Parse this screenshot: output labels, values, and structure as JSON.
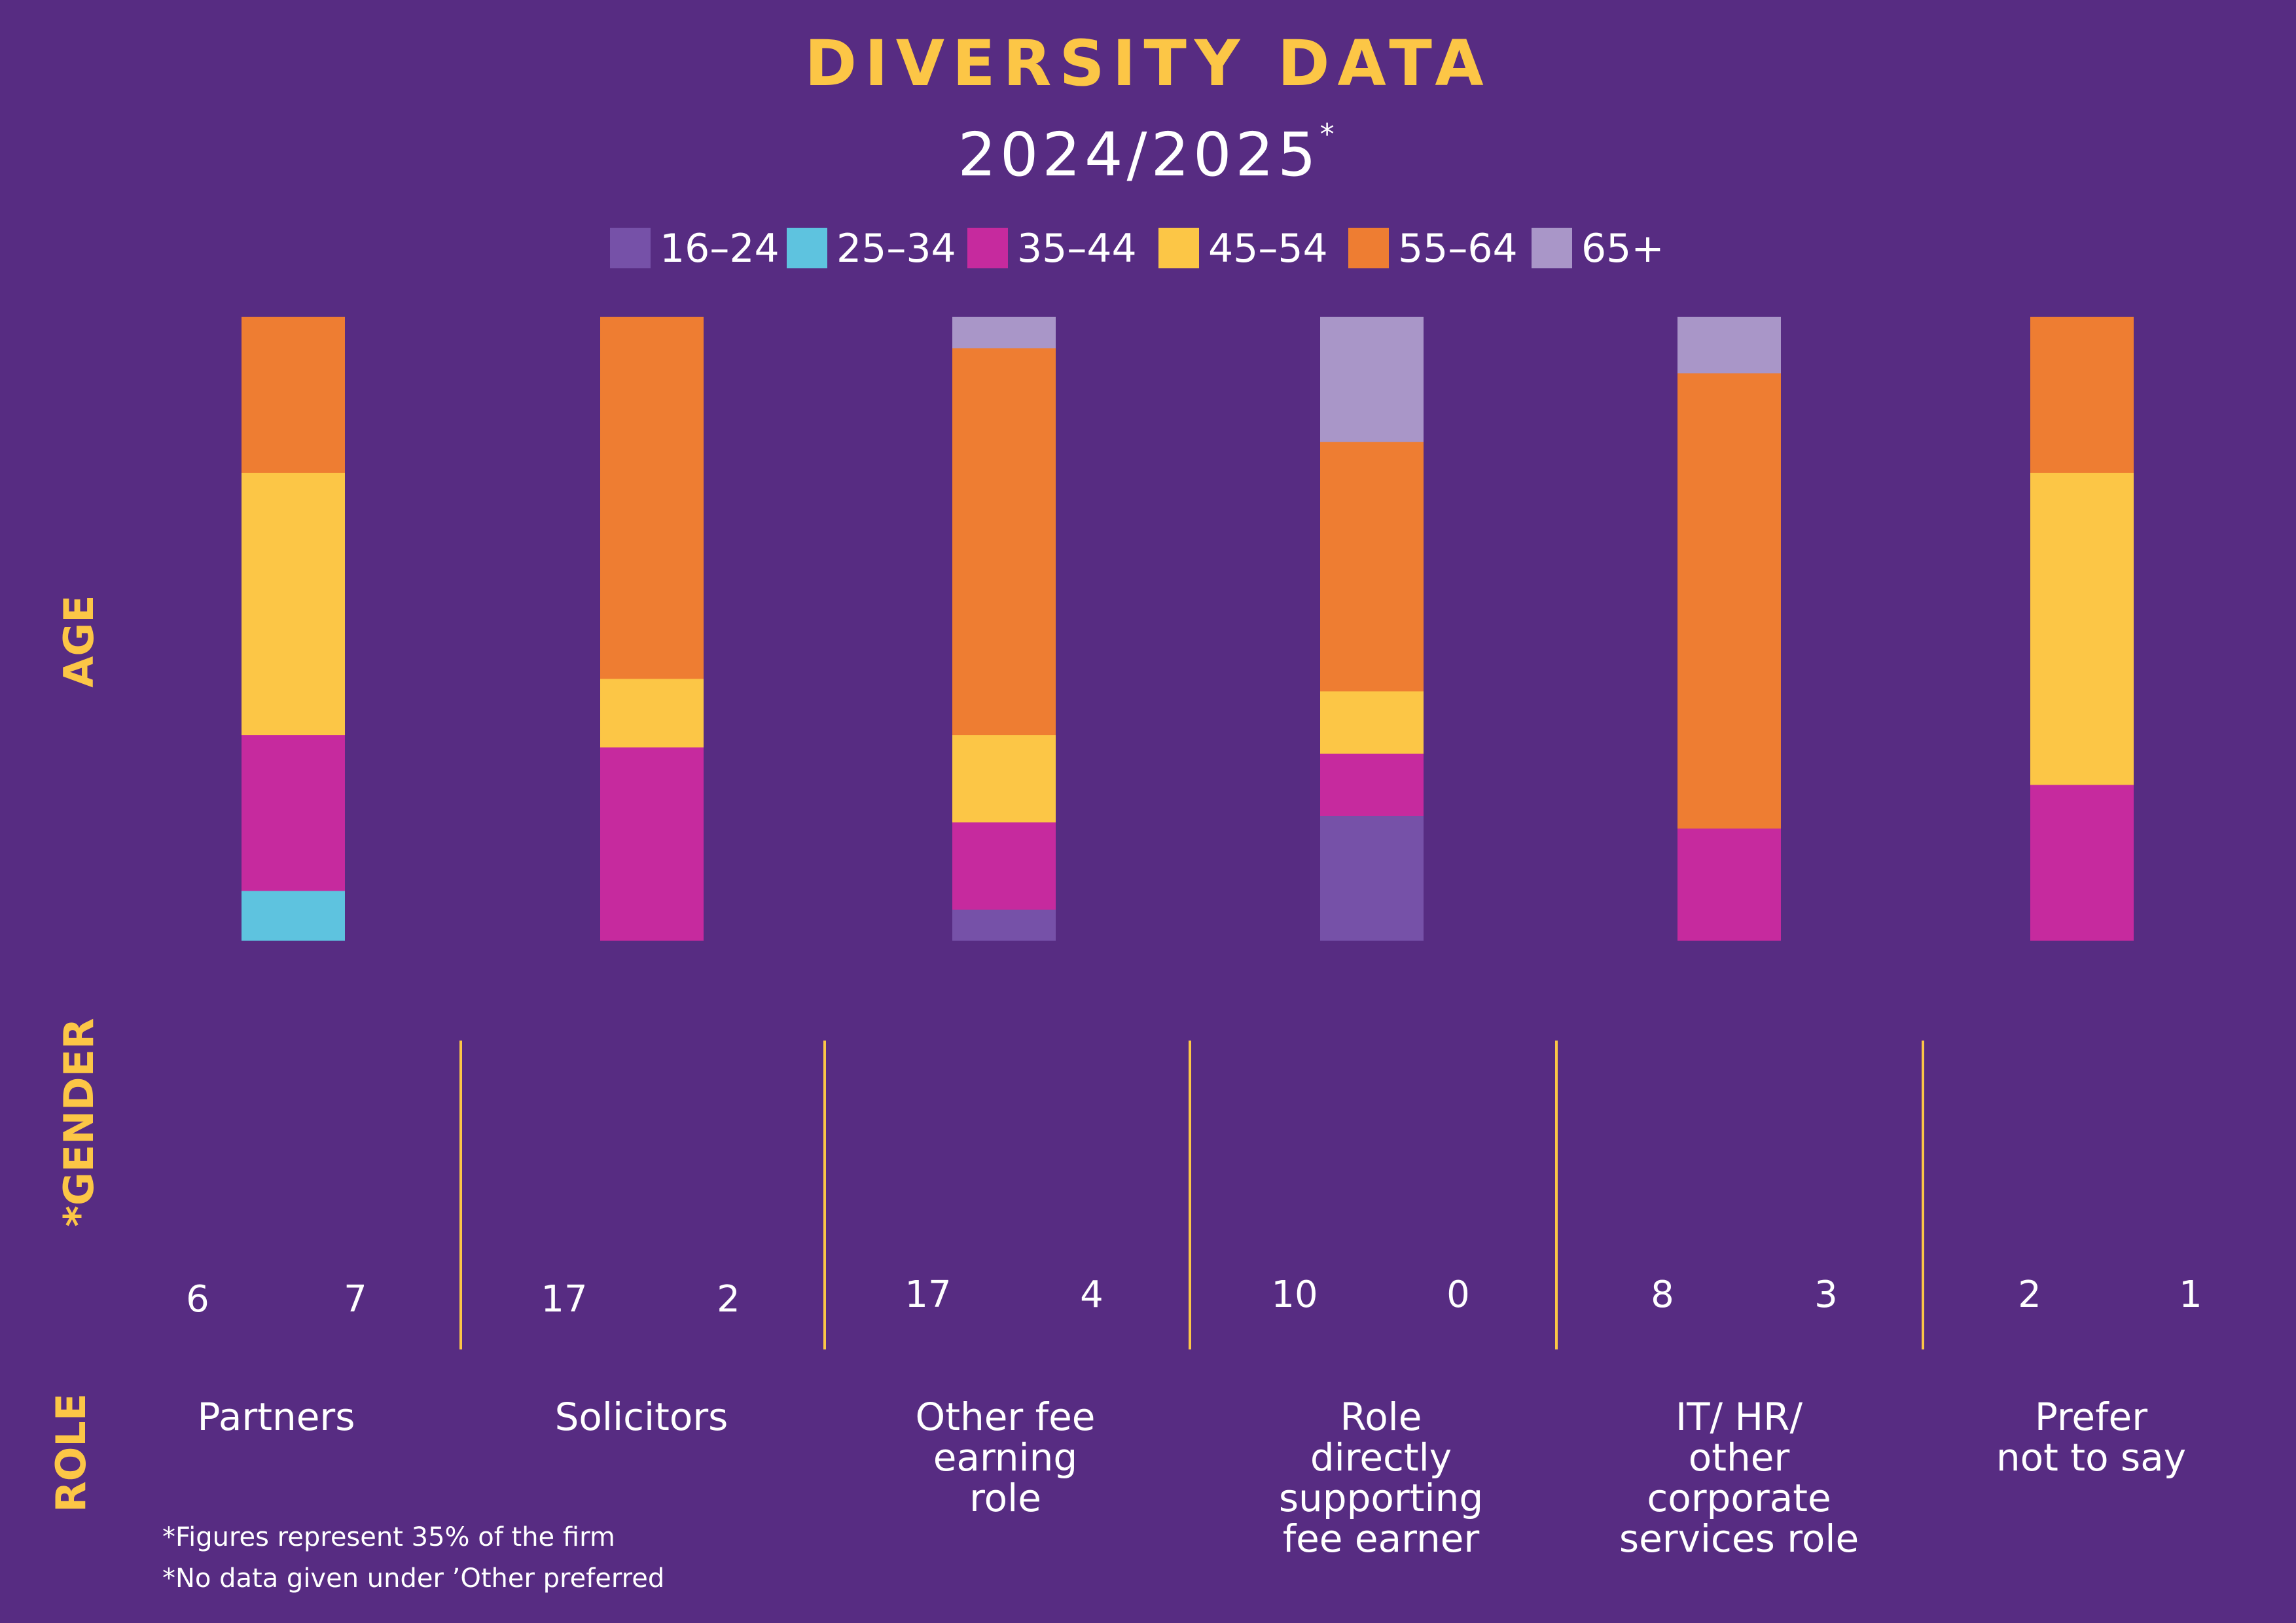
{
  "header": {
    "title": "DIVERSITY DATA",
    "subtitle": "2024/2025",
    "subtitle_mark": "*"
  },
  "section_labels": {
    "age": "AGE",
    "gender": "*GENDER",
    "role": "ROLE"
  },
  "footnotes": [
    "*Figures represent 35% of the firm",
    "*No data given under ’Other preferred"
  ],
  "colors": {
    "background": "#572c82",
    "accent": "#fcc646",
    "female": "#d6000f",
    "male": "#0a9a52",
    "figure_base": "#ffffff",
    "divider": "#fcc646"
  },
  "chart_data": {
    "type": "bar",
    "stacked": true,
    "orientation": "vertical",
    "value_unit": "percent",
    "categories": [
      "Partners",
      "Solicitors",
      "Other fee earning role",
      "Role directly supporting fee earner",
      "IT/ HR/ other corporate services role",
      "Prefer not to say"
    ],
    "age_series": [
      {
        "name": "16–24",
        "color": "#7651a8",
        "values": [
          0,
          0,
          5,
          20,
          0,
          0
        ]
      },
      {
        "name": "25–34",
        "color": "#5ec3df",
        "values": [
          8,
          0,
          0,
          0,
          0,
          0
        ]
      },
      {
        "name": "35–44",
        "color": "#c62a9e",
        "values": [
          25,
          31,
          14,
          10,
          18,
          25
        ]
      },
      {
        "name": "45–54",
        "color": "#fcc646",
        "values": [
          42,
          11,
          14,
          10,
          0,
          50
        ]
      },
      {
        "name": "55–64",
        "color": "#ee7d32",
        "values": [
          25,
          58,
          62,
          40,
          73,
          25
        ]
      },
      {
        "name": "65+",
        "color": "#a996c8",
        "values": [
          0,
          0,
          5,
          20,
          9,
          0
        ]
      }
    ],
    "gender": {
      "female_counts": [
        "6",
        "17",
        "17",
        "10",
        "8",
        "2"
      ],
      "male_counts": [
        "7",
        "2",
        "4",
        "0",
        "3",
        "1"
      ],
      "female_fill": [
        0.52,
        0.95,
        0.85,
        1.0,
        0.73,
        0.6
      ],
      "male_fill": [
        0.56,
        0.09,
        0.21,
        0.0,
        0.3,
        0.26
      ]
    },
    "role_labels": [
      [
        "Partners"
      ],
      [
        "Solicitors"
      ],
      [
        "Other fee",
        "earning",
        "role"
      ],
      [
        "Role",
        "directly",
        "supporting",
        "fee earner"
      ],
      [
        "IT/ HR/",
        "other",
        "corporate",
        "services role"
      ],
      [
        "Prefer",
        "not to say"
      ]
    ]
  }
}
